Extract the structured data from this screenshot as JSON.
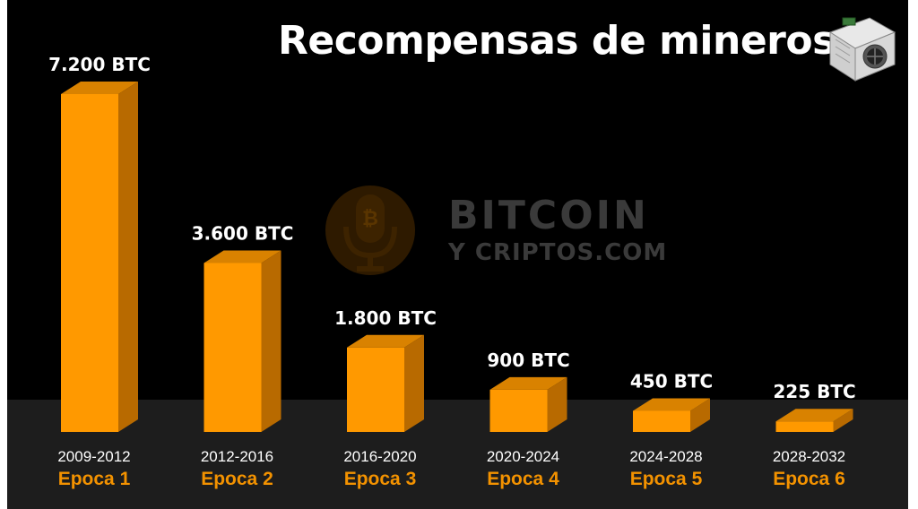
{
  "header": {
    "title": "Recompensas de mineros"
  },
  "watermark": {
    "line1": "BITCOIN",
    "line2": "Y CRIPTOS.COM"
  },
  "colors": {
    "background": "#000000",
    "floor": "#1d1d1d",
    "bar_front": "#ff9900",
    "bar_side": "#b86a00",
    "bar_top": "#d98200",
    "label_epoch": "#f39200",
    "text": "#ffffff"
  },
  "chart_data": {
    "type": "bar",
    "categories": [
      "Epoca 1",
      "Epoca 2",
      "Epoca 3",
      "Epoca 4",
      "Epoca 5",
      "Epoca 6"
    ],
    "periods": [
      "2009-2012",
      "2012-2016",
      "2016-2020",
      "2020-2024",
      "2024-2028",
      "2028-2032"
    ],
    "values": [
      7200,
      3600,
      1800,
      900,
      450,
      225
    ],
    "value_labels": [
      "7.200 BTC",
      "3.600 BTC",
      "1.800 BTC",
      "900 BTC",
      "450 BTC",
      "225 BTC"
    ],
    "title": "Recompensas de mineros",
    "grid": false
  }
}
